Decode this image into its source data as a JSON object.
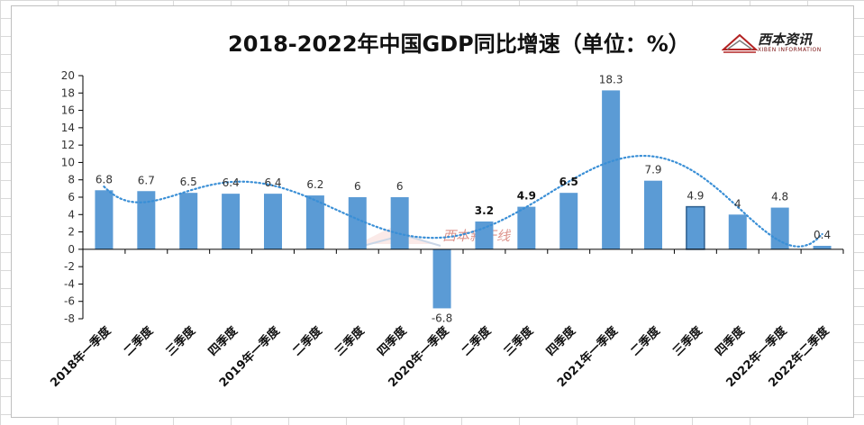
{
  "chart_data": {
    "type": "bar",
    "title": "2018-2022年中国GDP同比增速（单位：%）",
    "categories": [
      "2018年一季度",
      "二季度",
      "三季度",
      "四季度",
      "2019年一季度",
      "二季度",
      "三季度",
      "四季度",
      "2020年一季度",
      "二季度",
      "三季度",
      "四季度",
      "2021年一季度",
      "二季度",
      "三季度",
      "四季度",
      "2022年一季度",
      "2022年二季度"
    ],
    "series": [
      {
        "values": [
          6.8,
          6.7,
          6.5,
          6.4,
          6.4,
          6.2,
          6,
          6,
          -6.8,
          3.2,
          4.9,
          6.5,
          18.3,
          7.9,
          4.9,
          4,
          4.8,
          0.4
        ]
      }
    ],
    "data_labels": [
      "6.8",
      "6.7",
      "6.5",
      "6.4",
      "6.4",
      "6.2",
      "6",
      "6",
      "-6.8",
      "3.2",
      "4.9",
      "6.5",
      "18.3",
      "7.9",
      "4.9",
      "4",
      "4.8",
      "0.4"
    ],
    "bold_labels": [
      9,
      10,
      11
    ],
    "ylim": [
      -8,
      20
    ],
    "yticks": [
      -8,
      -6,
      -4,
      -2,
      0,
      2,
      4,
      6,
      8,
      10,
      12,
      14,
      16,
      18,
      20
    ],
    "ytick_labels": [
      "-8",
      "-6",
      "-4",
      "-2",
      "0",
      "2",
      "4",
      "6",
      "8",
      "10",
      "12",
      "14",
      "16",
      "18",
      "20"
    ],
    "trendline": {
      "style": "dotted",
      "kind": "polynomial"
    },
    "grid": false,
    "legend": "none",
    "colors": {
      "bar": "#5b9bd5",
      "bar_border": "#2e5f8f",
      "trend": "#3a8fd6",
      "axis": "#000000"
    }
  },
  "brand": {
    "name": "西本资讯",
    "sub": "XIBEN INFORMATION"
  },
  "watermark": {
    "text": "西本新干线"
  }
}
